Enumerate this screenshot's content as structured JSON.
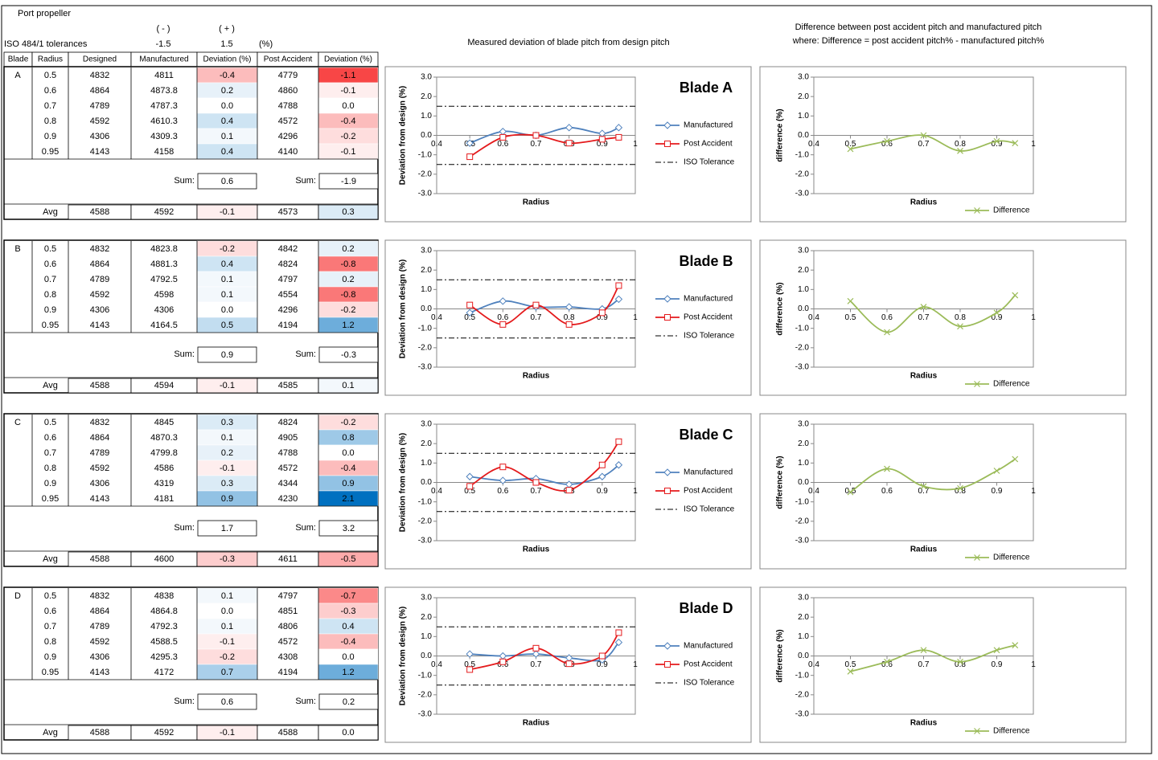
{
  "header": {
    "title": "Port propeller",
    "minus": "( - )",
    "plus": "( + )",
    "tolerance_label": "ISO 484/1 tolerances",
    "tolerance_minus": "-1.5",
    "tolerance_plus": "1.5",
    "unit": "(%)"
  },
  "columns": [
    "Blade",
    "Radius",
    "Designed",
    "Manufactured",
    "Deviation (%)",
    "Post Accident",
    "Deviation (%)"
  ],
  "blades": [
    {
      "name": "A",
      "rows": [
        [
          "0.5",
          "4832",
          "4811",
          "-0.4",
          "4779",
          "-1.1"
        ],
        [
          "0.6",
          "4864",
          "4873.8",
          "0.2",
          "4860",
          "-0.1"
        ],
        [
          "0.7",
          "4789",
          "4787.3",
          "0.0",
          "4788",
          "0.0"
        ],
        [
          "0.8",
          "4592",
          "4610.3",
          "0.4",
          "4572",
          "-0.4"
        ],
        [
          "0.9",
          "4306",
          "4309.3",
          "0.1",
          "4296",
          "-0.2"
        ],
        [
          "0.95",
          "4143",
          "4158",
          "0.4",
          "4140",
          "-0.1"
        ]
      ],
      "sum_label": "Sum:",
      "sum": [
        "0.6",
        "-1.9"
      ],
      "avg_label": "Avg",
      "avg": [
        "4588",
        "4592",
        "-0.1",
        "4573",
        "0.3"
      ]
    },
    {
      "name": "B",
      "rows": [
        [
          "0.5",
          "4832",
          "4823.8",
          "-0.2",
          "4842",
          "0.2"
        ],
        [
          "0.6",
          "4864",
          "4881.3",
          "0.4",
          "4824",
          "-0.8"
        ],
        [
          "0.7",
          "4789",
          "4792.5",
          "0.1",
          "4797",
          "0.2"
        ],
        [
          "0.8",
          "4592",
          "4598",
          "0.1",
          "4554",
          "-0.8"
        ],
        [
          "0.9",
          "4306",
          "4306",
          "0.0",
          "4296",
          "-0.2"
        ],
        [
          "0.95",
          "4143",
          "4164.5",
          "0.5",
          "4194",
          "1.2"
        ]
      ],
      "sum_label": "Sum:",
      "sum": [
        "0.9",
        "-0.3"
      ],
      "avg_label": "Avg",
      "avg": [
        "4588",
        "4594",
        "-0.1",
        "4585",
        "0.1"
      ]
    },
    {
      "name": "C",
      "rows": [
        [
          "0.5",
          "4832",
          "4845",
          "0.3",
          "4824",
          "-0.2"
        ],
        [
          "0.6",
          "4864",
          "4870.3",
          "0.1",
          "4905",
          "0.8"
        ],
        [
          "0.7",
          "4789",
          "4799.8",
          "0.2",
          "4788",
          "0.0"
        ],
        [
          "0.8",
          "4592",
          "4586",
          "-0.1",
          "4572",
          "-0.4"
        ],
        [
          "0.9",
          "4306",
          "4319",
          "0.3",
          "4344",
          "0.9"
        ],
        [
          "0.95",
          "4143",
          "4181",
          "0.9",
          "4230",
          "2.1"
        ]
      ],
      "sum_label": "Sum:",
      "sum": [
        "1.7",
        "3.2"
      ],
      "avg_label": "Avg",
      "avg": [
        "4588",
        "4600",
        "-0.3",
        "4611",
        "-0.5"
      ]
    },
    {
      "name": "D",
      "rows": [
        [
          "0.5",
          "4832",
          "4838",
          "0.1",
          "4797",
          "-0.7"
        ],
        [
          "0.6",
          "4864",
          "4864.8",
          "0.0",
          "4851",
          "-0.3"
        ],
        [
          "0.7",
          "4789",
          "4792.3",
          "0.1",
          "4806",
          "0.4"
        ],
        [
          "0.8",
          "4592",
          "4588.5",
          "-0.1",
          "4572",
          "-0.4"
        ],
        [
          "0.9",
          "4306",
          "4295.3",
          "-0.2",
          "4308",
          "0.0"
        ],
        [
          "0.95",
          "4143",
          "4172",
          "0.7",
          "4194",
          "1.2"
        ]
      ],
      "sum_label": "Sum:",
      "sum": [
        "0.6",
        "0.2"
      ],
      "avg_label": "Avg",
      "avg": [
        "4588",
        "4592",
        "-0.1",
        "4588",
        "0.0"
      ]
    }
  ],
  "chart_headers": [
    "Measured deviation of blade pitch from design pitch",
    "Difference between post accident pitch and manufactured pitch",
    "where: Difference = post accident pitch% - manufactured pitch%"
  ],
  "chart_data": [
    {
      "type": "line",
      "title": "Blade A",
      "xlabel": "Radius",
      "ylabel": "Deviation from design (%)",
      "x": [
        0.5,
        0.6,
        0.7,
        0.8,
        0.9,
        0.95
      ],
      "xlim": [
        0.4,
        1
      ],
      "xticks": [
        0.4,
        0.5,
        0.6,
        0.7,
        0.8,
        0.9,
        1
      ],
      "ylim": [
        -3,
        3
      ],
      "yticks": [
        {
          "value": -3,
          "label": "-3.0"
        },
        {
          "value": -2,
          "label": "-2.0"
        },
        {
          "value": -1,
          "label": "-1.0"
        },
        {
          "value": 0,
          "label": "0.0"
        },
        {
          "value": 1,
          "label": "1.0"
        },
        {
          "value": 2,
          "label": "2.0"
        },
        {
          "value": 3,
          "label": "3.0"
        }
      ],
      "legend": "right",
      "series": [
        {
          "name": "Manufactured",
          "color": "#4f81bd",
          "marker": "diamond",
          "values": [
            -0.4,
            0.2,
            0.0,
            0.4,
            0.1,
            0.4
          ]
        },
        {
          "name": "Post Accident",
          "color": "#e41a1c",
          "marker": "square",
          "values": [
            -1.1,
            -0.1,
            0.0,
            -0.4,
            -0.2,
            -0.1
          ]
        }
      ],
      "reference": {
        "name": "ISO Tolerance",
        "color": "#000000",
        "values": [
          1.5,
          -1.5
        ]
      }
    },
    {
      "type": "line",
      "xlabel": "Radius",
      "ylabel": "difference (%)",
      "x": [
        0.5,
        0.6,
        0.7,
        0.8,
        0.9,
        0.95
      ],
      "xlim": [
        0.4,
        1
      ],
      "xticks": [
        0.4,
        0.5,
        0.6,
        0.7,
        0.8,
        0.9,
        1
      ],
      "ylim": [
        -3,
        3
      ],
      "yticks": [
        {
          "value": -3,
          "label": "-3.0"
        },
        {
          "value": -2,
          "label": "-2.0"
        },
        {
          "value": -1,
          "label": "-1.0"
        },
        {
          "value": 0,
          "label": "0.0"
        },
        {
          "value": 1,
          "label": "1.0"
        },
        {
          "value": 2,
          "label": "2.0"
        },
        {
          "value": 3,
          "label": "3.0"
        }
      ],
      "legend": "bottom-right",
      "series": [
        {
          "name": "Difference",
          "color": "#9bbb59",
          "marker": "x",
          "values": [
            -0.7,
            -0.3,
            0.0,
            -0.8,
            -0.3,
            -0.4
          ]
        }
      ]
    },
    {
      "type": "line",
      "title": "Blade B",
      "xlabel": "Radius",
      "ylabel": "Deviation from design (%)",
      "x": [
        0.5,
        0.6,
        0.7,
        0.8,
        0.9,
        0.95
      ],
      "xlim": [
        0.4,
        1
      ],
      "xticks": [
        0.4,
        0.5,
        0.6,
        0.7,
        0.8,
        0.9,
        1
      ],
      "ylim": [
        -3,
        3
      ],
      "yticks": [
        {
          "value": -3,
          "label": "-3.0"
        },
        {
          "value": -2,
          "label": "-2.0"
        },
        {
          "value": -1,
          "label": "-1.0"
        },
        {
          "value": 0,
          "label": "0.0"
        },
        {
          "value": 1,
          "label": "1.0"
        },
        {
          "value": 2,
          "label": "2.0"
        },
        {
          "value": 3,
          "label": "3.0"
        }
      ],
      "legend": "right",
      "series": [
        {
          "name": "Manufactured",
          "color": "#4f81bd",
          "marker": "diamond",
          "values": [
            -0.2,
            0.4,
            0.1,
            0.1,
            0.0,
            0.5
          ]
        },
        {
          "name": "Post Accident",
          "color": "#e41a1c",
          "marker": "square",
          "values": [
            0.2,
            -0.8,
            0.2,
            -0.8,
            -0.2,
            1.2
          ]
        }
      ],
      "reference": {
        "name": "ISO Tolerance",
        "color": "#000000",
        "values": [
          1.5,
          -1.5
        ]
      }
    },
    {
      "type": "line",
      "xlabel": "Radius",
      "ylabel": "difference (%)",
      "x": [
        0.5,
        0.6,
        0.7,
        0.8,
        0.9,
        0.95
      ],
      "xlim": [
        0.4,
        1
      ],
      "xticks": [
        0.4,
        0.5,
        0.6,
        0.7,
        0.8,
        0.9,
        1
      ],
      "ylim": [
        -3,
        3
      ],
      "yticks": [
        {
          "value": -3,
          "label": "-3.0"
        },
        {
          "value": -2,
          "label": "-2.0"
        },
        {
          "value": -1,
          "label": "-1.0"
        },
        {
          "value": 0,
          "label": "0.0"
        },
        {
          "value": 1,
          "label": "1.0"
        },
        {
          "value": 2,
          "label": "2.0"
        },
        {
          "value": 3,
          "label": "3.0"
        }
      ],
      "legend": "bottom-right",
      "series": [
        {
          "name": "Difference",
          "color": "#9bbb59",
          "marker": "x",
          "values": [
            0.4,
            -1.2,
            0.1,
            -0.9,
            -0.2,
            0.7
          ]
        }
      ]
    },
    {
      "type": "line",
      "title": "Blade C",
      "xlabel": "Radius",
      "ylabel": "Deviation from design (%)",
      "x": [
        0.5,
        0.6,
        0.7,
        0.8,
        0.9,
        0.95
      ],
      "xlim": [
        0.4,
        1
      ],
      "xticks": [
        0.4,
        0.5,
        0.6,
        0.7,
        0.8,
        0.9,
        1
      ],
      "ylim": [
        -3,
        3
      ],
      "yticks": [
        {
          "value": -3,
          "label": "-3.0"
        },
        {
          "value": -2,
          "label": "-2.0"
        },
        {
          "value": -1,
          "label": "-1.0"
        },
        {
          "value": 0,
          "label": "0.0"
        },
        {
          "value": 1,
          "label": "1.0"
        },
        {
          "value": 2,
          "label": "2.0"
        },
        {
          "value": 3,
          "label": "3.0"
        }
      ],
      "legend": "right",
      "series": [
        {
          "name": "Manufactured",
          "color": "#4f81bd",
          "marker": "diamond",
          "values": [
            0.3,
            0.1,
            0.2,
            -0.1,
            0.3,
            0.9
          ]
        },
        {
          "name": "Post Accident",
          "color": "#e41a1c",
          "marker": "square",
          "values": [
            -0.2,
            0.8,
            0.0,
            -0.4,
            0.9,
            2.1
          ]
        }
      ],
      "reference": {
        "name": "ISO Tolerance",
        "color": "#000000",
        "values": [
          1.5,
          -1.5
        ]
      }
    },
    {
      "type": "line",
      "xlabel": "Radius",
      "ylabel": "difference (%)",
      "x": [
        0.5,
        0.6,
        0.7,
        0.8,
        0.9,
        0.95
      ],
      "xlim": [
        0.4,
        1
      ],
      "xticks": [
        0.4,
        0.5,
        0.6,
        0.7,
        0.8,
        0.9,
        1
      ],
      "ylim": [
        -3,
        3
      ],
      "yticks": [
        {
          "value": -3,
          "label": "-3.0"
        },
        {
          "value": -2,
          "label": "-2.0"
        },
        {
          "value": -1,
          "label": "-1.0"
        },
        {
          "value": 0,
          "label": "0.0"
        },
        {
          "value": 1,
          "label": "1.0"
        },
        {
          "value": 2,
          "label": "2.0"
        },
        {
          "value": 3,
          "label": "3.0"
        }
      ],
      "legend": "bottom-right",
      "series": [
        {
          "name": "Difference",
          "color": "#9bbb59",
          "marker": "x",
          "values": [
            -0.5,
            0.7,
            -0.2,
            -0.3,
            0.6,
            1.2
          ]
        }
      ]
    },
    {
      "type": "line",
      "title": "Blade D",
      "xlabel": "Radius",
      "ylabel": "Deviation from design (%)",
      "x": [
        0.5,
        0.6,
        0.7,
        0.8,
        0.9,
        0.95
      ],
      "xlim": [
        0.4,
        1
      ],
      "xticks": [
        0.4,
        0.5,
        0.6,
        0.7,
        0.8,
        0.9,
        1
      ],
      "ylim": [
        -3,
        3
      ],
      "yticks": [
        {
          "value": -3,
          "label": "-3.0"
        },
        {
          "value": -2,
          "label": "-2.0"
        },
        {
          "value": -1,
          "label": "-1.0"
        },
        {
          "value": 0,
          "label": "0.0"
        },
        {
          "value": 1,
          "label": "1.0"
        },
        {
          "value": 2,
          "label": "2.0"
        },
        {
          "value": 3,
          "label": "3.0"
        }
      ],
      "legend": "right",
      "series": [
        {
          "name": "Manufactured",
          "color": "#4f81bd",
          "marker": "diamond",
          "values": [
            0.1,
            0.0,
            0.1,
            -0.1,
            -0.2,
            0.7
          ]
        },
        {
          "name": "Post Accident",
          "color": "#e41a1c",
          "marker": "square",
          "values": [
            -0.7,
            -0.3,
            0.4,
            -0.4,
            0.0,
            1.2
          ]
        }
      ],
      "reference": {
        "name": "ISO Tolerance",
        "color": "#000000",
        "values": [
          1.5,
          -1.5
        ]
      }
    },
    {
      "type": "line",
      "xlabel": "Radius",
      "ylabel": "difference (%)",
      "x": [
        0.5,
        0.6,
        0.7,
        0.8,
        0.9,
        0.95
      ],
      "xlim": [
        0.4,
        1
      ],
      "xticks": [
        0.4,
        0.5,
        0.6,
        0.7,
        0.8,
        0.9,
        1
      ],
      "ylim": [
        -3,
        3
      ],
      "yticks": [
        {
          "value": -3,
          "label": "-3.0"
        },
        {
          "value": -2,
          "label": "-2.0"
        },
        {
          "value": -1,
          "label": "-1.0"
        },
        {
          "value": 0,
          "label": "0.0"
        },
        {
          "value": 1,
          "label": "1.0"
        },
        {
          "value": 2,
          "label": "2.0"
        },
        {
          "value": 3,
          "label": "3.0"
        }
      ],
      "legend": "bottom-right",
      "series": [
        {
          "name": "Difference",
          "color": "#9bbb59",
          "marker": "x",
          "values": [
            -0.8,
            -0.3,
            0.3,
            -0.3,
            0.3,
            0.55
          ]
        }
      ]
    }
  ]
}
